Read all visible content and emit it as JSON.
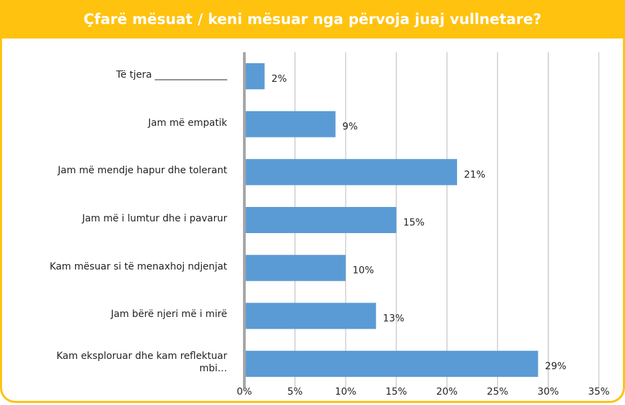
{
  "chart_data": {
    "type": "barh",
    "title": "Çfarë mësuat / keni mësuar nga përvoja juaj vullnetare?",
    "categories": [
      "Të tjera _______________",
      "Jam më empatik",
      "Jam më mendje hapur dhe tolerant",
      "Jam më i lumtur dhe i pavarur",
      "Kam mësuar si të menaxhoj ndjenjat",
      "Jam bërë njeri më i mirë",
      "Kam eksploruar dhe kam reflektuar\nmbi…"
    ],
    "values": [
      2,
      9,
      21,
      15,
      10,
      13,
      29
    ],
    "value_labels": [
      "2%",
      "9%",
      "21%",
      "15%",
      "10%",
      "13%",
      "29%"
    ],
    "color": "#5b9bd5",
    "xlim": [
      0,
      35
    ],
    "xticks": [
      {
        "value": 0,
        "label": "0%"
      },
      {
        "value": 5,
        "label": "5%"
      },
      {
        "value": 10,
        "label": "10%"
      },
      {
        "value": 15,
        "label": "15%"
      },
      {
        "value": 20,
        "label": "20%"
      },
      {
        "value": 25,
        "label": "25%"
      },
      {
        "value": 30,
        "label": "30%"
      },
      {
        "value": 35,
        "label": "35%"
      }
    ],
    "grid": true
  }
}
